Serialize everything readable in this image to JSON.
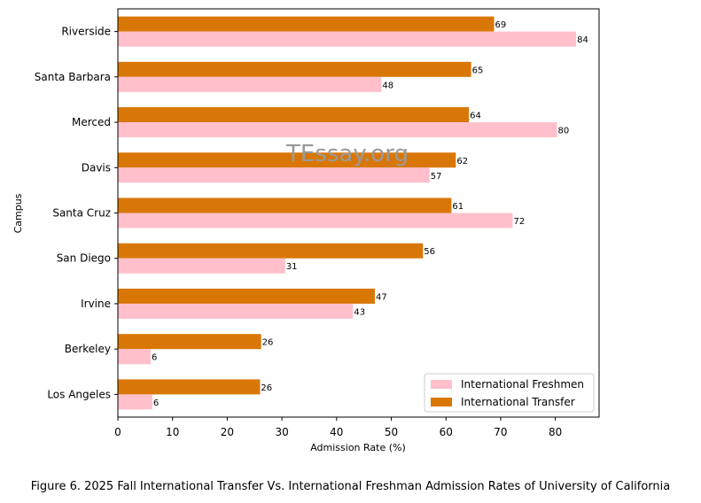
{
  "caption": "Figure 6. 2025 Fall International Transfer Vs. International Freshman Admission Rates of University of California",
  "watermark": "TEssay.org",
  "chart_data": {
    "type": "bar",
    "orientation": "horizontal",
    "title": "",
    "xlabel": "Admission Rate (%)",
    "ylabel": "Campus",
    "categories": [
      "Riverside",
      "Santa Barbara",
      "Merced",
      "Davis",
      "Santa Cruz",
      "San Diego",
      "Irvine",
      "Berkeley",
      "Los Angeles"
    ],
    "series": [
      {
        "name": "International Freshmen",
        "color": "#FFC0CB",
        "values": [
          83.8,
          48.2,
          80.3,
          57.0,
          72.2,
          30.6,
          43.0,
          6.0,
          6.3
        ],
        "labels": [
          "84",
          "48",
          "80",
          "57",
          "72",
          "31",
          "43",
          "6",
          "6"
        ]
      },
      {
        "name": "International Transfer",
        "color": "#D97706",
        "values": [
          68.8,
          64.6,
          64.2,
          61.8,
          61.0,
          55.8,
          47.0,
          26.2,
          26.0
        ],
        "labels": [
          "69",
          "65",
          "64",
          "62",
          "61",
          "56",
          "47",
          "26",
          "26"
        ]
      }
    ],
    "xlim": [
      0,
      88
    ],
    "xticks": [
      "0",
      "10",
      "20",
      "30",
      "40",
      "50",
      "60",
      "70",
      "80"
    ],
    "legend_position": "lower-right",
    "grid": false
  }
}
